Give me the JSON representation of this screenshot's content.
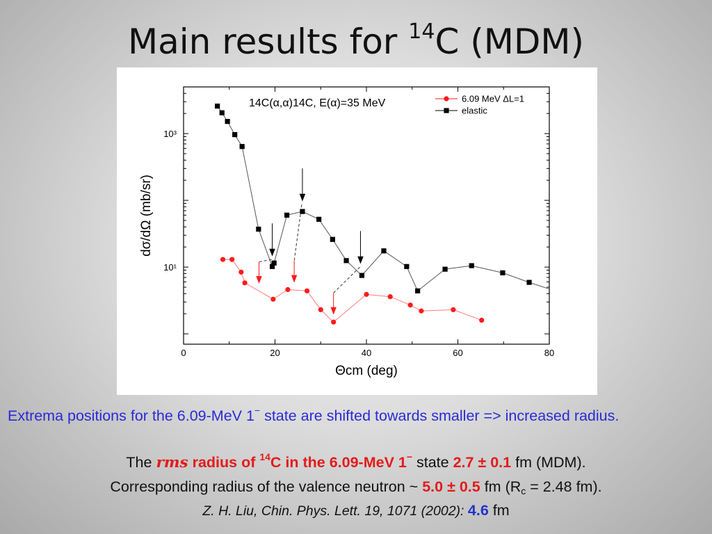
{
  "slide": {
    "title_main": "Main results for ",
    "title_sup": "14",
    "title_rest": "C (MDM)"
  },
  "caption": {
    "part1": "Extrema positions for the 6.09-MeV 1",
    "part1_sup": "−",
    "part2": " state are shifted towards smaller => increased radius."
  },
  "line1": {
    "the": "The ",
    "rms": "rms",
    "bold1": " radius of ",
    "sup14": "14",
    "bold2": "C in the 6.09-MeV 1",
    "bold_sup": "−",
    "state": " state ",
    "value": "2.7 ± 0.1",
    "tail": " fm (MDM)."
  },
  "line2": {
    "pre": "Corresponding radius of the valence neutron ~ ",
    "value": "5.0 ± 0.5",
    "mid": " fm (R",
    "sub": "c",
    "tail": " = 2.48 fm)."
  },
  "line3": {
    "ref": "Z. H. Liu, Chin. Phys. Lett. 19, 1071 (2002): ",
    "value": "4.6",
    "unit": " fm"
  },
  "chart_data": {
    "type": "line",
    "annotation": "14C(α,α)14C, E(α)=35 MeV",
    "xlabel": "Θcm (deg)",
    "ylabel": "dσ/dΩ (mb/sr)",
    "xlim": [
      0,
      80
    ],
    "ylim": [
      0.7,
      5000
    ],
    "yscale": "log",
    "xticks": [
      0,
      20,
      40,
      60,
      80
    ],
    "yticks": [
      10,
      1000
    ],
    "ytick_labels": [
      "10¹",
      "10³"
    ],
    "legend_position": "top-right",
    "series": [
      {
        "name": "6.09 MeV ΔL=1",
        "color": "#ff1a1a",
        "marker": "circle",
        "x": [
          8.6,
          10.6,
          12.6,
          13.4,
          19.6,
          22.8,
          27.0,
          30.0,
          32.8,
          40.0,
          45.2,
          49.6,
          52.0,
          59.0,
          65.2
        ],
        "y": [
          13.0,
          13.0,
          8.4,
          5.8,
          3.3,
          4.6,
          4.4,
          2.3,
          1.5,
          3.9,
          3.6,
          2.7,
          2.2,
          2.3,
          1.6
        ]
      },
      {
        "name": "elastic",
        "color": "#000000",
        "marker": "square",
        "x": [
          7.4,
          8.4,
          9.6,
          11.2,
          12.8,
          16.4,
          19.4,
          19.8,
          22.6,
          26.0,
          29.6,
          32.6,
          35.6,
          39.0,
          43.8,
          48.8,
          51.2,
          57.2,
          63.0,
          69.8,
          75.6
        ],
        "y": [
          2580,
          2050,
          1520,
          965,
          640,
          37,
          10.2,
          11.5,
          60,
          68,
          52,
          26,
          12.5,
          7.5,
          17.5,
          10.2,
          4.4,
          9.3,
          10.5,
          8.2,
          5.9
        ]
      }
    ],
    "minima_arrows": [
      {
        "elastic_x": 19.4,
        "state_x": 16.5
      },
      {
        "elastic_x": 26.0,
        "state_x": 24.2
      },
      {
        "elastic_x": 38.7,
        "state_x": 32.8
      }
    ]
  }
}
